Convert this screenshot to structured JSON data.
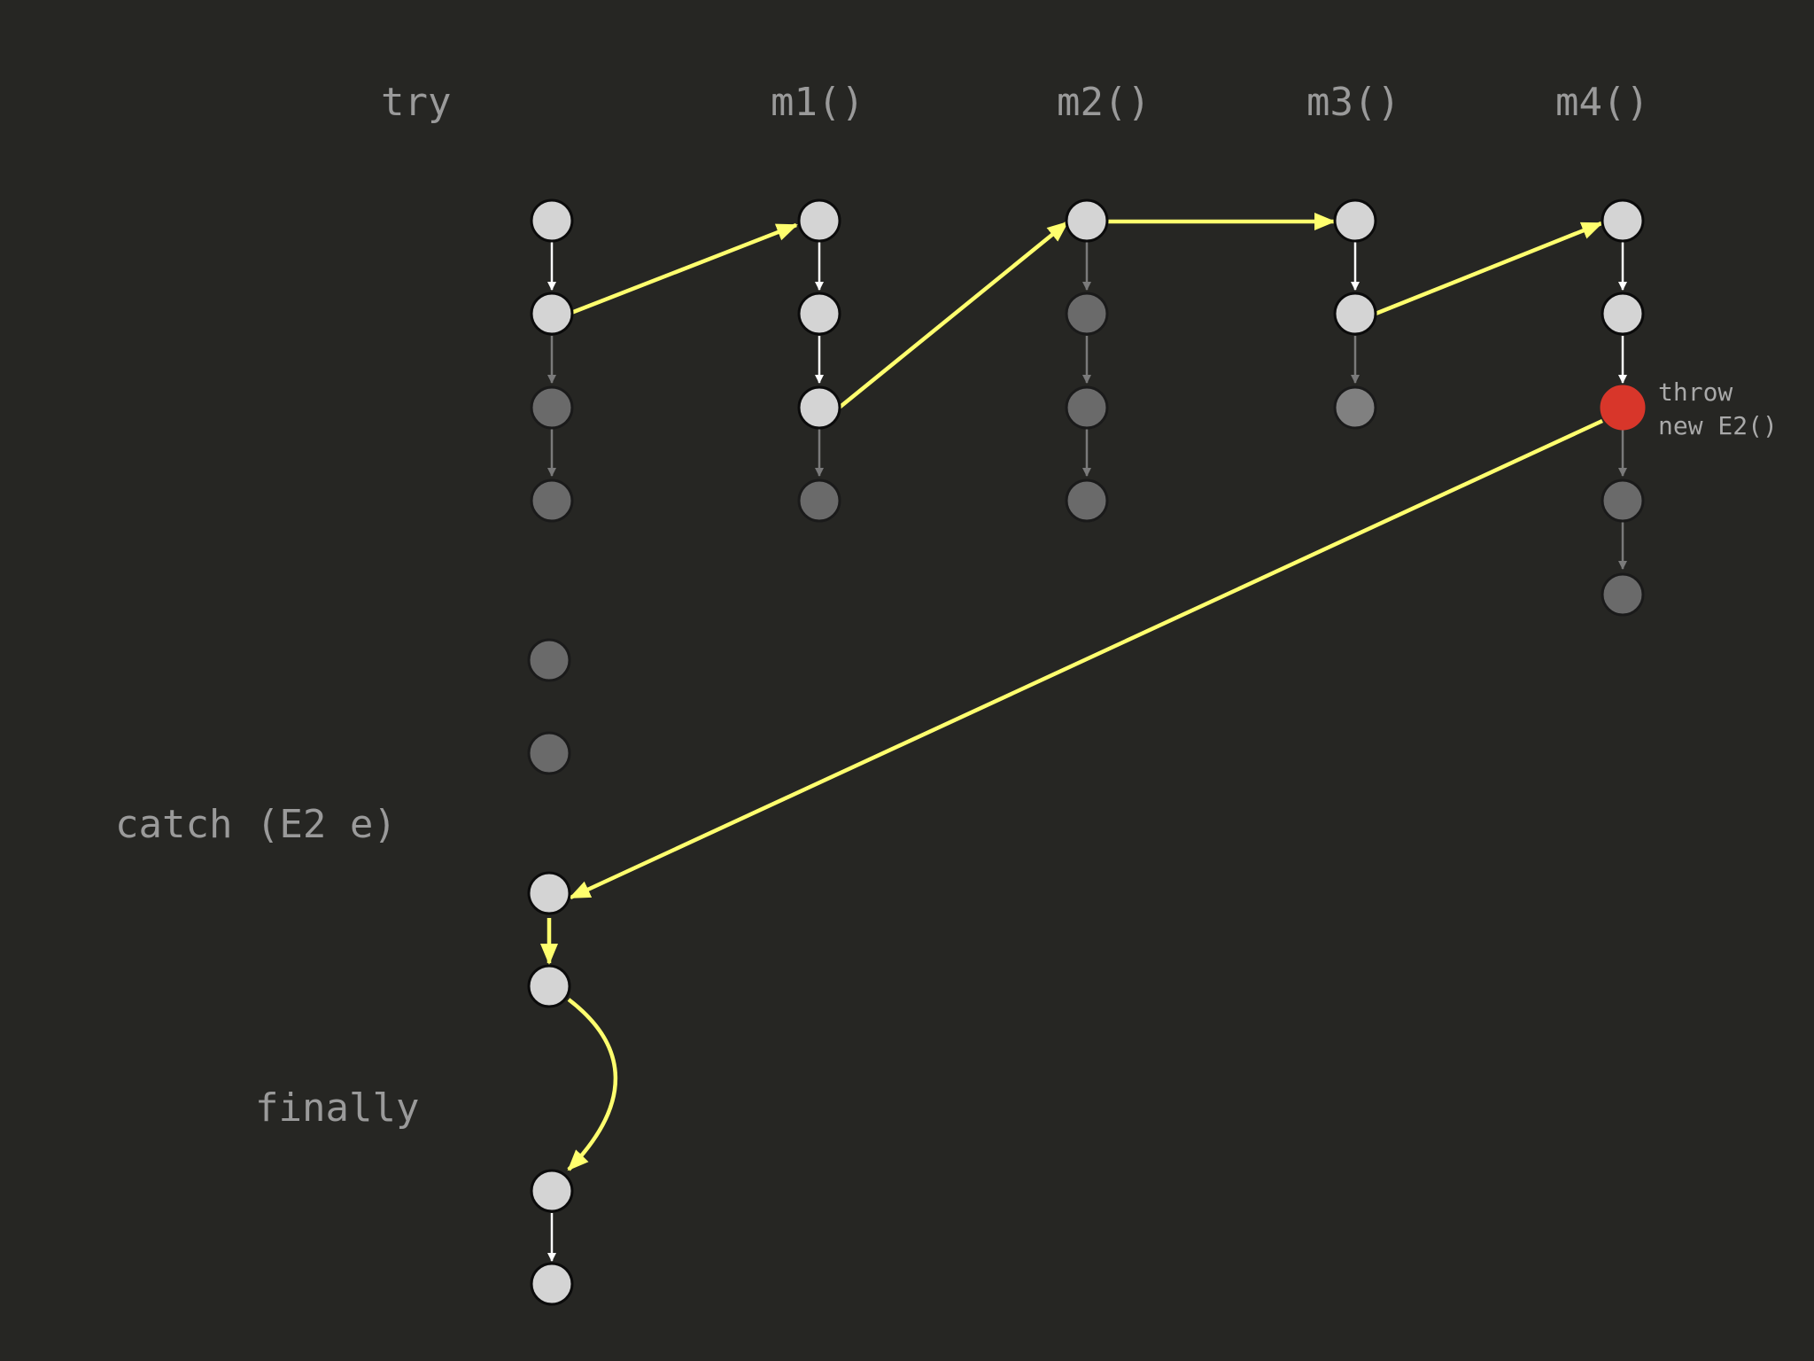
{
  "labels": {
    "try": "try",
    "m1": "m1()",
    "m2": "m2()",
    "m3": "m3()",
    "m4": "m4()",
    "catch": "catch (E2 e)",
    "finally": "finally"
  },
  "throw_annotation": {
    "line1": "throw",
    "line2": "new E2()"
  },
  "colors": {
    "background": "#262623",
    "flow_arrow": "#ffff6e",
    "active_node": "#d4d4d4",
    "inactive_node": "#6a6a6a",
    "throw_node": "#d8362a"
  }
}
